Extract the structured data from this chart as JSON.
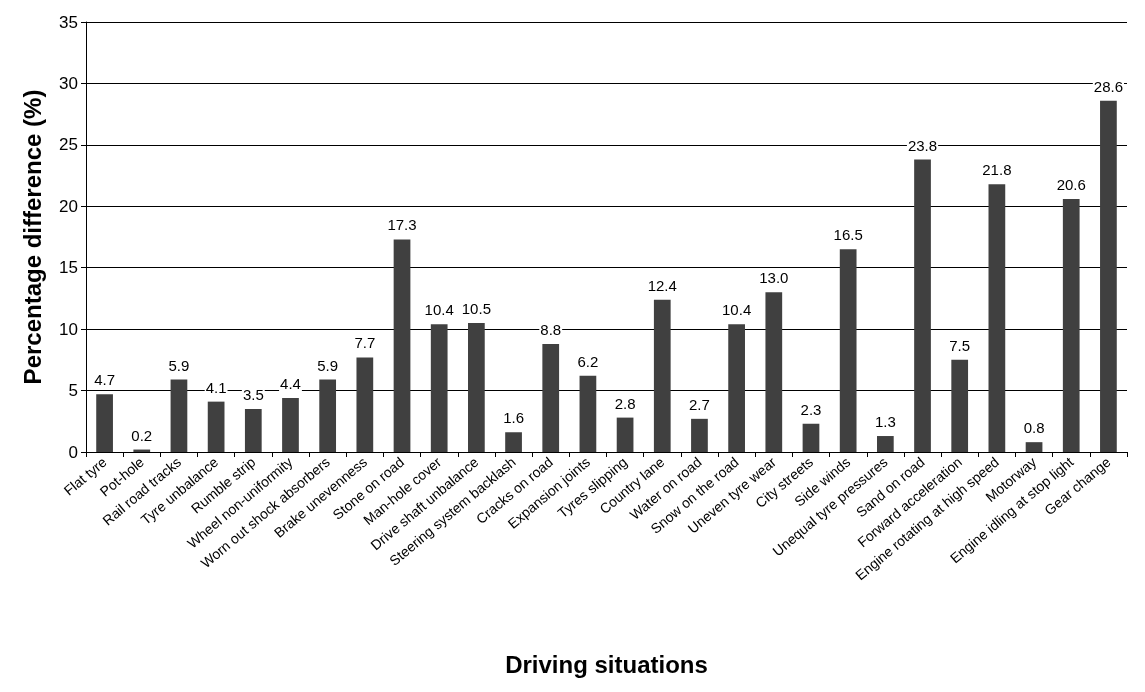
{
  "chart_data": {
    "type": "bar",
    "xlabel": "Driving situations",
    "ylabel": "Percentage difference (%)",
    "categories": [
      "Flat tyre",
      "Pot-hole",
      "Rail road tracks",
      "Tyre unbalance",
      "Rumble strip",
      "Wheel non-uniformity",
      "Worn out shock absorbers",
      "Brake unevenness",
      "Stone on road",
      "Man-hole cover",
      "Drive shaft unbalance",
      "Steering system backlash",
      "Cracks on road",
      "Expansion joints",
      "Tyres slipping",
      "Country lane",
      "Water on road",
      "Snow on the road",
      "Uneven tyre wear",
      "City streets",
      "Side winds",
      "Unequal tyre pressures",
      "Sand on road",
      "Forward acceleration",
      "Engine rotating at high speed",
      "Motorway",
      "Engine idling at stop light",
      "Gear change"
    ],
    "values": [
      4.7,
      0.2,
      5.9,
      4.1,
      3.5,
      4.4,
      5.9,
      7.7,
      17.3,
      10.4,
      10.5,
      1.6,
      8.8,
      6.2,
      2.8,
      12.4,
      2.7,
      10.4,
      13.0,
      2.3,
      16.5,
      1.3,
      23.8,
      7.5,
      21.8,
      0.8,
      20.6,
      28.6
    ],
    "value_labels": [
      "4.7",
      "0.2",
      "5.9",
      "4.1",
      "3.5",
      "4.4",
      "5.9",
      "7.7",
      "17.3",
      "10.4",
      "10.5",
      "1.6",
      "8.8",
      "6.2",
      "2.8",
      "12.4",
      "2.7",
      "10.4",
      "13.0",
      "2.3",
      "16.5",
      "1.3",
      "23.8",
      "7.5",
      "21.8",
      "0.8",
      "20.6",
      "28.6"
    ],
    "color": "#404040",
    "ylim": [
      0,
      35
    ],
    "yticks": [
      0,
      5,
      10,
      15,
      20,
      25,
      30,
      35
    ],
    "grid": "y"
  }
}
